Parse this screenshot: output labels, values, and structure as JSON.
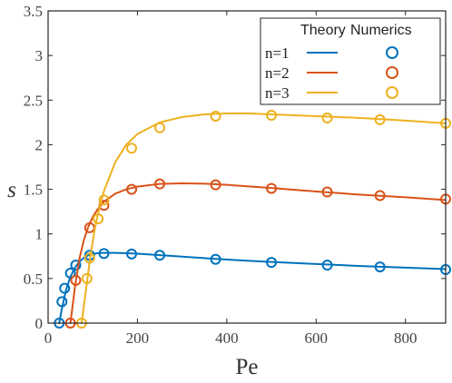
{
  "chart_data": {
    "type": "line",
    "xlabel": "Pe",
    "ylabel": "s",
    "xlim": [
      0,
      890
    ],
    "ylim": [
      0,
      3.5
    ],
    "xticks": [
      0,
      200,
      400,
      600,
      800
    ],
    "yticks": [
      0,
      0.5,
      1,
      1.5,
      2,
      2.5,
      3,
      3.5
    ],
    "xtick_labels": [
      "0",
      "200",
      "400",
      "600",
      "800"
    ],
    "ytick_labels": [
      "0",
      "0.5",
      "1",
      "1.5",
      "2",
      "2.5",
      "3",
      "3.5"
    ],
    "grid": false,
    "legend": {
      "position": "top-right",
      "headers": [
        "Theory",
        "Numerics"
      ],
      "labels": [
        "n=1",
        "n=2",
        "n=3"
      ]
    },
    "series": [
      {
        "name": "n=1",
        "color": "#0072BD",
        "theory": {
          "x": [
            25,
            30,
            40,
            50,
            60,
            70,
            80,
            90,
            100,
            110,
            125,
            150,
            175,
            200,
            250,
            300,
            375,
            450,
            500,
            600,
            700,
            800,
            890
          ],
          "y": [
            0.0,
            0.14,
            0.37,
            0.52,
            0.62,
            0.69,
            0.73,
            0.76,
            0.775,
            0.783,
            0.787,
            0.787,
            0.783,
            0.778,
            0.762,
            0.745,
            0.72,
            0.698,
            0.685,
            0.662,
            0.64,
            0.622,
            0.605
          ]
        },
        "numerics": {
          "x": [
            25,
            31,
            37,
            50,
            62,
            93,
            125,
            187,
            250,
            375,
            500,
            625,
            743,
            890
          ],
          "y": [
            0.0,
            0.24,
            0.39,
            0.56,
            0.65,
            0.76,
            0.78,
            0.775,
            0.76,
            0.715,
            0.68,
            0.65,
            0.63,
            0.6
          ]
        }
      },
      {
        "name": "n=2",
        "color": "#D95319",
        "theory": {
          "x": [
            50,
            55,
            60,
            70,
            80,
            90,
            100,
            110,
            125,
            150,
            175,
            200,
            250,
            300,
            350,
            400,
            500,
            600,
            700,
            800,
            890
          ],
          "y": [
            0.0,
            0.2,
            0.4,
            0.72,
            0.93,
            1.08,
            1.19,
            1.27,
            1.36,
            1.45,
            1.5,
            1.53,
            1.56,
            1.567,
            1.563,
            1.55,
            1.515,
            1.475,
            1.44,
            1.41,
            1.38
          ]
        },
        "numerics": {
          "x": [
            50,
            62,
            93,
            125,
            187,
            250,
            375,
            500,
            625,
            743,
            890
          ],
          "y": [
            0.0,
            0.48,
            1.07,
            1.32,
            1.5,
            1.56,
            1.55,
            1.51,
            1.47,
            1.43,
            1.39
          ]
        }
      },
      {
        "name": "n=3",
        "color": "#EDB120",
        "theory": {
          "x": [
            75,
            85,
            95,
            105,
            115,
            125,
            150,
            175,
            200,
            250,
            300,
            350,
            400,
            450,
            500,
            600,
            700,
            800,
            890
          ],
          "y": [
            0.0,
            0.38,
            0.76,
            1.07,
            1.3,
            1.48,
            1.8,
            2.0,
            2.12,
            2.25,
            2.31,
            2.34,
            2.35,
            2.35,
            2.34,
            2.32,
            2.3,
            2.27,
            2.24
          ]
        },
        "numerics": {
          "x": [
            75,
            87,
            93,
            112,
            125,
            187,
            250,
            375,
            500,
            625,
            743,
            890
          ],
          "y": [
            0.0,
            0.5,
            0.73,
            1.17,
            1.38,
            1.96,
            2.19,
            2.32,
            2.33,
            2.3,
            2.28,
            2.24
          ]
        }
      }
    ]
  }
}
